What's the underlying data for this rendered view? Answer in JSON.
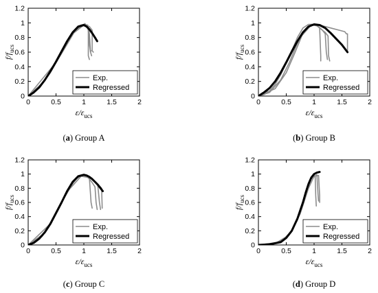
{
  "chart_data": [
    {
      "type": "line",
      "xlabel": "ε/ε",
      "xlabel_sub": "ucs",
      "ylabel": "f/f",
      "ylabel_sub": "ucs",
      "xlim": [
        0,
        2
      ],
      "ylim": [
        0,
        1.2
      ],
      "xticks": [
        "0",
        "0.5",
        "1",
        "1.5",
        "2"
      ],
      "yticks": [
        "0",
        "0.2",
        "0.4",
        "0.6",
        "0.8",
        "1",
        "1.2"
      ],
      "caption_label": "(a)",
      "caption_text": "Group A",
      "legend": [
        "Exp.",
        "Regressed"
      ],
      "legend_position": "bottom-right",
      "series": [
        {
          "name": "Exp.",
          "color": "#8c8c8c",
          "lines": [
            {
              "x": [
                0,
                0.1,
                0.2,
                0.3,
                0.4,
                0.5,
                0.6,
                0.7,
                0.8,
                0.9,
                0.95,
                1.0,
                1.02,
                1.04,
                1.06,
                1.08,
                1.1,
                1.12,
                1.14
              ],
              "y": [
                0,
                0.05,
                0.12,
                0.22,
                0.34,
                0.47,
                0.61,
                0.75,
                0.87,
                0.95,
                0.97,
                0.98,
                0.99,
                0.97,
                0.95,
                0.9,
                0.7,
                0.6,
                0.55
              ]
            },
            {
              "x": [
                0,
                0.2,
                0.4,
                0.6,
                0.8,
                0.95,
                1.02,
                1.08,
                1.08,
                1.1
              ],
              "y": [
                0,
                0.11,
                0.32,
                0.59,
                0.86,
                0.97,
                0.98,
                0.95,
                0.55,
                0.5
              ]
            },
            {
              "x": [
                0,
                0.3,
                0.6,
                0.85,
                1.0,
                1.07,
                1.1,
                1.12,
                1.13
              ],
              "y": [
                0,
                0.21,
                0.58,
                0.9,
                0.98,
                0.97,
                0.85,
                0.6,
                0.62
              ]
            },
            {
              "x": [
                0,
                0.5,
                0.8,
                1.0,
                1.1,
                1.15,
                1.15,
                1.17
              ],
              "y": [
                0,
                0.46,
                0.85,
                0.97,
                0.95,
                0.9,
                0.62,
                0.6
              ]
            }
          ]
        },
        {
          "name": "Regressed",
          "color": "#000000",
          "lines": [
            {
              "x": [
                0,
                0.1,
                0.2,
                0.3,
                0.4,
                0.5,
                0.6,
                0.7,
                0.8,
                0.9,
                1.0,
                1.05,
                1.1,
                1.15,
                1.2,
                1.24
              ],
              "y": [
                0,
                0.05,
                0.12,
                0.22,
                0.34,
                0.47,
                0.61,
                0.75,
                0.87,
                0.95,
                0.97,
                0.95,
                0.91,
                0.86,
                0.8,
                0.75
              ]
            }
          ]
        }
      ]
    },
    {
      "type": "line",
      "xlabel": "ε/ε",
      "xlabel_sub": "ucs",
      "ylabel": "f/f",
      "ylabel_sub": "ucs",
      "xlim": [
        0,
        2
      ],
      "ylim": [
        0,
        1.2
      ],
      "xticks": [
        "0",
        "0.5",
        "1",
        "1.5",
        "2"
      ],
      "yticks": [
        "0",
        "0.2",
        "0.4",
        "0.6",
        "0.8",
        "1",
        "1.2"
      ],
      "caption_label": "(b)",
      "caption_text": "Group B",
      "legend": [
        "Exp.",
        "Regressed"
      ],
      "legend_position": "bottom-right",
      "series": [
        {
          "name": "Exp.",
          "color": "#8c8c8c",
          "lines": [
            {
              "x": [
                0,
                0.1,
                0.2,
                0.3,
                0.4,
                0.5,
                0.6,
                0.7,
                0.8,
                0.9,
                1.0,
                1.05,
                1.1,
                1.15,
                1.2,
                1.25,
                1.26,
                1.28
              ],
              "y": [
                0,
                0.02,
                0.07,
                0.16,
                0.29,
                0.45,
                0.62,
                0.8,
                0.93,
                0.98,
                0.98,
                0.96,
                0.93,
                0.9,
                0.87,
                0.82,
                0.55,
                0.48
              ]
            },
            {
              "x": [
                0,
                0.2,
                0.4,
                0.55,
                0.7,
                0.85,
                0.95,
                1.05,
                1.1,
                1.12,
                1.12
              ],
              "y": [
                0,
                0.05,
                0.22,
                0.45,
                0.72,
                0.92,
                0.97,
                0.96,
                0.93,
                0.55,
                0.48
              ]
            },
            {
              "x": [
                0,
                0.3,
                0.5,
                0.65,
                0.8,
                0.95,
                1.05,
                1.15,
                1.2,
                1.22,
                1.24
              ],
              "y": [
                0,
                0.1,
                0.32,
                0.58,
                0.86,
                0.98,
                0.97,
                0.9,
                0.85,
                0.6,
                0.5
              ]
            },
            {
              "x": [
                0,
                0.15,
                0.35,
                0.55,
                0.75,
                0.95,
                1.1,
                1.3,
                1.45,
                1.55,
                1.58,
                1.6,
                1.6
              ],
              "y": [
                0,
                0.06,
                0.25,
                0.52,
                0.8,
                0.97,
                0.97,
                0.93,
                0.9,
                0.88,
                0.85,
                0.85,
                0.62
              ]
            }
          ]
        },
        {
          "name": "Regressed",
          "color": "#000000",
          "lines": [
            {
              "x": [
                0,
                0.1,
                0.2,
                0.3,
                0.4,
                0.5,
                0.6,
                0.7,
                0.8,
                0.9,
                1.0,
                1.1,
                1.2,
                1.3,
                1.4,
                1.5,
                1.6
              ],
              "y": [
                0,
                0.05,
                0.11,
                0.2,
                0.32,
                0.46,
                0.61,
                0.75,
                0.87,
                0.95,
                0.98,
                0.97,
                0.93,
                0.86,
                0.78,
                0.7,
                0.6
              ]
            }
          ]
        }
      ]
    },
    {
      "type": "line",
      "xlabel": "ε/ε",
      "xlabel_sub": "ucs",
      "ylabel": "f/f",
      "ylabel_sub": "ucs",
      "xlim": [
        0,
        2
      ],
      "ylim": [
        0,
        1.2
      ],
      "xticks": [
        "0",
        "0.5",
        "1",
        "1.5",
        "2"
      ],
      "yticks": [
        "0",
        "0.2",
        "0.4",
        "0.6",
        "0.8",
        "1",
        "1.2"
      ],
      "caption_label": "(c)",
      "caption_text": "Group C",
      "legend": [
        "Exp.",
        "Regressed"
      ],
      "legend_position": "bottom-right",
      "series": [
        {
          "name": "Exp.",
          "color": "#8c8c8c",
          "lines": [
            {
              "x": [
                0,
                0.1,
                0.2,
                0.3,
                0.4,
                0.5,
                0.6,
                0.7,
                0.8,
                0.9,
                1.0,
                1.05,
                1.1,
                1.15,
                1.2,
                1.22,
                1.24
              ],
              "y": [
                0,
                0.03,
                0.09,
                0.18,
                0.3,
                0.45,
                0.6,
                0.76,
                0.89,
                0.97,
                0.99,
                0.97,
                0.93,
                0.88,
                0.82,
                0.6,
                0.5
              ]
            },
            {
              "x": [
                0,
                0.25,
                0.5,
                0.75,
                0.9,
                1.0,
                1.1,
                1.13,
                1.15
              ],
              "y": [
                0,
                0.12,
                0.44,
                0.82,
                0.96,
                0.98,
                0.94,
                0.6,
                0.52
              ]
            },
            {
              "x": [
                0,
                0.3,
                0.6,
                0.85,
                1.0,
                1.15,
                1.25,
                1.28,
                1.3
              ],
              "y": [
                0,
                0.17,
                0.6,
                0.93,
                0.99,
                0.94,
                0.84,
                0.6,
                0.5
              ]
            },
            {
              "x": [
                0,
                0.4,
                0.7,
                0.95,
                1.1,
                1.2,
                1.32,
                1.33
              ],
              "y": [
                0,
                0.3,
                0.75,
                0.97,
                0.95,
                0.9,
                0.8,
                0.52
              ]
            }
          ]
        },
        {
          "name": "Regressed",
          "color": "#000000",
          "lines": [
            {
              "x": [
                0,
                0.1,
                0.2,
                0.3,
                0.4,
                0.5,
                0.6,
                0.7,
                0.8,
                0.9,
                1.0,
                1.05,
                1.1,
                1.15,
                1.2,
                1.25,
                1.3,
                1.34
              ],
              "y": [
                0,
                0.03,
                0.09,
                0.18,
                0.3,
                0.45,
                0.6,
                0.76,
                0.89,
                0.97,
                0.99,
                0.98,
                0.96,
                0.93,
                0.89,
                0.85,
                0.8,
                0.76
              ]
            }
          ]
        }
      ]
    },
    {
      "type": "line",
      "xlabel": "ε/ε",
      "xlabel_sub": "ucs",
      "ylabel": "f/f",
      "ylabel_sub": "ucs",
      "xlim": [
        0,
        2
      ],
      "ylim": [
        0,
        1.2
      ],
      "xticks": [
        "0",
        "0.5",
        "1",
        "1.5",
        "2"
      ],
      "yticks": [
        "0",
        "0.2",
        "0.4",
        "0.6",
        "0.8",
        "1",
        "1.2"
      ],
      "caption_label": "(d)",
      "caption_text": "Group D",
      "legend": [
        "Exp.",
        "Regressed"
      ],
      "legend_position": "bottom-right",
      "series": [
        {
          "name": "Exp.",
          "color": "#8c8c8c",
          "lines": [
            {
              "x": [
                0,
                0.2,
                0.4,
                0.5,
                0.6,
                0.7,
                0.8,
                0.85,
                0.9,
                0.95,
                1.0,
                1.02,
                1.03,
                1.04
              ],
              "y": [
                0,
                0.01,
                0.04,
                0.1,
                0.2,
                0.37,
                0.6,
                0.74,
                0.86,
                0.95,
                0.99,
                0.97,
                0.7,
                0.55
              ]
            },
            {
              "x": [
                0,
                0.3,
                0.55,
                0.7,
                0.85,
                0.95,
                1.05,
                1.07,
                1.08
              ],
              "y": [
                0,
                0.02,
                0.14,
                0.35,
                0.72,
                0.93,
                0.99,
                0.72,
                0.62
              ]
            },
            {
              "x": [
                0,
                0.4,
                0.6,
                0.75,
                0.9,
                1.0,
                1.08,
                1.1,
                1.1
              ],
              "y": [
                0,
                0.04,
                0.2,
                0.44,
                0.8,
                0.97,
                0.98,
                0.7,
                0.6
              ]
            }
          ]
        },
        {
          "name": "Regressed",
          "color": "#000000",
          "lines": [
            {
              "x": [
                0,
                0.2,
                0.4,
                0.5,
                0.6,
                0.7,
                0.8,
                0.85,
                0.9,
                0.95,
                1.0,
                1.05,
                1.1
              ],
              "y": [
                0,
                0.01,
                0.04,
                0.1,
                0.2,
                0.37,
                0.6,
                0.74,
                0.86,
                0.95,
                1.0,
                1.02,
                1.03
              ]
            }
          ]
        }
      ]
    }
  ]
}
